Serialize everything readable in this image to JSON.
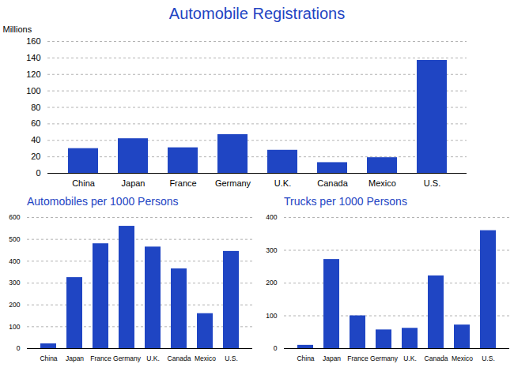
{
  "chart_data": [
    {
      "type": "bar",
      "title": "Automobile Registrations",
      "ylabel": "Millions",
      "categories": [
        "China",
        "Japan",
        "France",
        "Germany",
        "U.K.",
        "Canada",
        "Mexico",
        "U.S."
      ],
      "values": [
        30,
        42,
        31,
        47,
        28,
        13,
        19,
        137
      ],
      "color": "#1f45c3",
      "ylim": [
        0,
        160
      ],
      "yticks": [
        0,
        20,
        40,
        60,
        80,
        100,
        120,
        140,
        160
      ],
      "grid": true
    },
    {
      "type": "bar",
      "title": "Automobiles per 1000 Persons",
      "categories": [
        "China",
        "Japan",
        "France",
        "Germany",
        "U.K.",
        "Canada",
        "Mexico",
        "U.S."
      ],
      "values": [
        22,
        325,
        480,
        560,
        465,
        365,
        160,
        445
      ],
      "color": "#1f45c3",
      "ylim": [
        0,
        600
      ],
      "yticks": [
        0,
        100,
        200,
        300,
        400,
        500,
        600
      ],
      "grid": true
    },
    {
      "type": "bar",
      "title": "Trucks per 1000 Persons",
      "categories": [
        "China",
        "Japan",
        "France",
        "Germany",
        "U.K.",
        "Canada",
        "Mexico",
        "U.S."
      ],
      "values": [
        10,
        272,
        100,
        57,
        62,
        222,
        72,
        360
      ],
      "color": "#1f45c3",
      "ylim": [
        0,
        400
      ],
      "yticks": [
        0,
        100,
        200,
        300,
        400
      ],
      "grid": true
    }
  ]
}
